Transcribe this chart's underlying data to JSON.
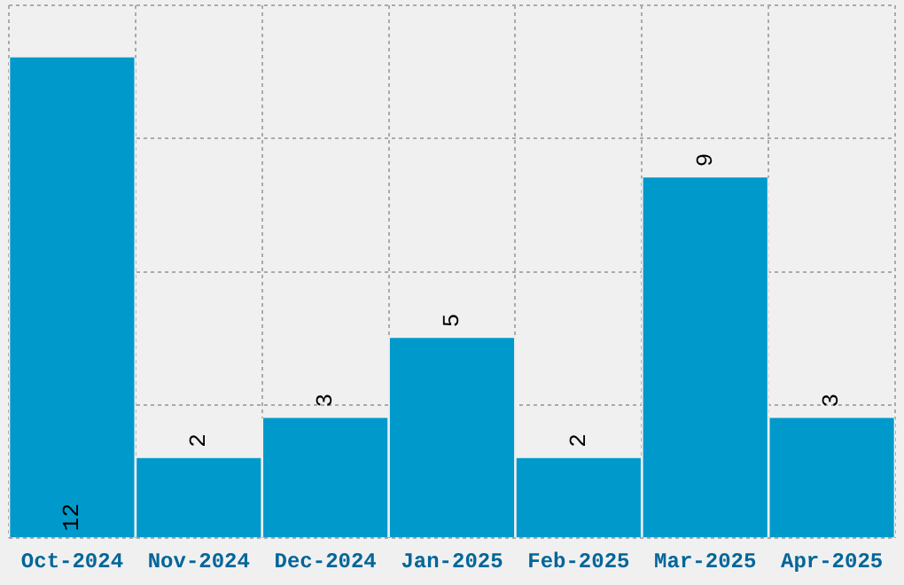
{
  "chart_data": {
    "type": "bar",
    "categories": [
      "Oct-2024",
      "Nov-2024",
      "Dec-2024",
      "Jan-2025",
      "Feb-2025",
      "Mar-2025",
      "Apr-2025"
    ],
    "values": [
      12,
      2,
      3,
      5,
      2,
      9,
      3
    ],
    "color": "#0099cc",
    "data_labels": true,
    "grid": true,
    "legend": false,
    "tick_labels": "x",
    "ylim": [
      0,
      13.3
    ],
    "yticks": [
      {
        "value": 0,
        "label": null
      },
      {
        "value": 3.325,
        "label": null
      },
      {
        "value": 6.65,
        "label": null
      },
      {
        "value": 9.975,
        "label": null
      },
      {
        "value": 13.3,
        "label": null
      }
    ]
  }
}
